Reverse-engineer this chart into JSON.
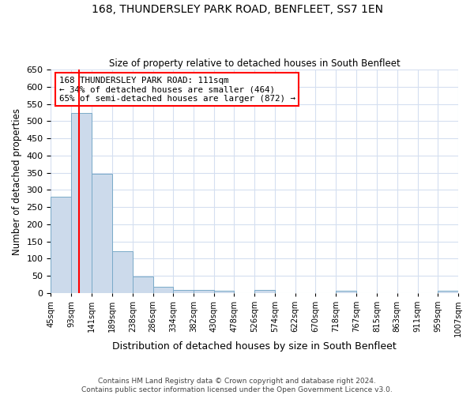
{
  "title": "168, THUNDERSLEY PARK ROAD, BENFLEET, SS7 1EN",
  "subtitle": "Size of property relative to detached houses in South Benfleet",
  "xlabel": "Distribution of detached houses by size in South Benfleet",
  "ylabel": "Number of detached properties",
  "bar_edges": [
    45,
    93,
    141,
    189,
    238,
    286,
    334,
    382,
    430,
    478,
    526,
    574,
    622,
    670,
    718,
    767,
    815,
    863,
    911,
    959,
    1007
  ],
  "bar_heights": [
    280,
    523,
    346,
    122,
    48,
    18,
    10,
    10,
    7,
    0,
    8,
    0,
    0,
    0,
    7,
    0,
    0,
    0,
    0,
    7
  ],
  "bar_color": "#ccdaeb",
  "bar_edge_color": "#7aaac8",
  "grid_color": "#d5dff0",
  "property_size": 111,
  "property_line_color": "red",
  "annotation_text": "168 THUNDERSLEY PARK ROAD: 111sqm\n← 34% of detached houses are smaller (464)\n65% of semi-detached houses are larger (872) →",
  "annotation_box_color": "white",
  "annotation_box_edge_color": "red",
  "ylim": [
    0,
    650
  ],
  "yticks": [
    0,
    50,
    100,
    150,
    200,
    250,
    300,
    350,
    400,
    450,
    500,
    550,
    600,
    650
  ],
  "footer": "Contains HM Land Registry data © Crown copyright and database right 2024.\nContains public sector information licensed under the Open Government Licence v3.0.",
  "tick_labels": [
    "45sqm",
    "93sqm",
    "141sqm",
    "189sqm",
    "238sqm",
    "286sqm",
    "334sqm",
    "382sqm",
    "430sqm",
    "478sqm",
    "526sqm",
    "574sqm",
    "622sqm",
    "670sqm",
    "718sqm",
    "767sqm",
    "815sqm",
    "863sqm",
    "911sqm",
    "959sqm",
    "1007sqm"
  ]
}
